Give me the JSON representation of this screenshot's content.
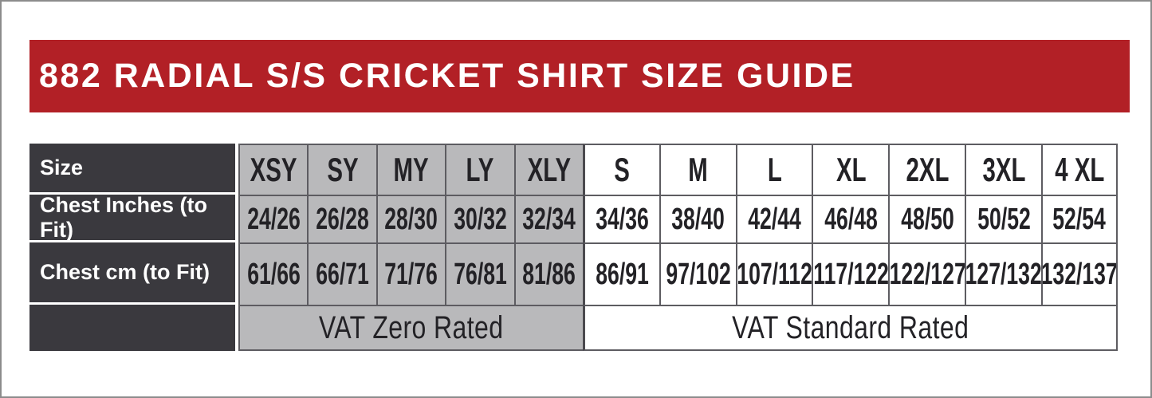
{
  "title": "882 RADIAL S/S CRICKET SHIRT SIZE GUIDE",
  "colors": {
    "banner_red": "#b22026",
    "label_charcoal": "#3a393e",
    "youth_gray": "#b9b9bb",
    "grid_border": "#5d5c61",
    "text_dark": "#232226"
  },
  "table": {
    "row_labels": {
      "size": "Size",
      "chest_inches": "Chest Inches (to Fit)",
      "chest_cm": "Chest cm (to Fit)"
    },
    "youth": {
      "sizes": [
        "XSY",
        "SY",
        "MY",
        "LY",
        "XLY"
      ],
      "chest_inches": [
        "24/26",
        "26/28",
        "28/30",
        "30/32",
        "32/34"
      ],
      "chest_cm": [
        "61/66",
        "66/71",
        "71/76",
        "76/81",
        "81/86"
      ],
      "vat_label": "VAT Zero Rated"
    },
    "adult": {
      "sizes": [
        "S",
        "M",
        "L",
        "XL",
        "2XL",
        "3XL",
        "4 XL"
      ],
      "chest_inches": [
        "34/36",
        "38/40",
        "42/44",
        "46/48",
        "48/50",
        "50/52",
        "52/54"
      ],
      "chest_cm": [
        "86/91",
        "97/102",
        "107/112",
        "117/122",
        "122/127",
        "127/132",
        "132/137"
      ],
      "vat_label": "VAT Standard Rated"
    }
  }
}
